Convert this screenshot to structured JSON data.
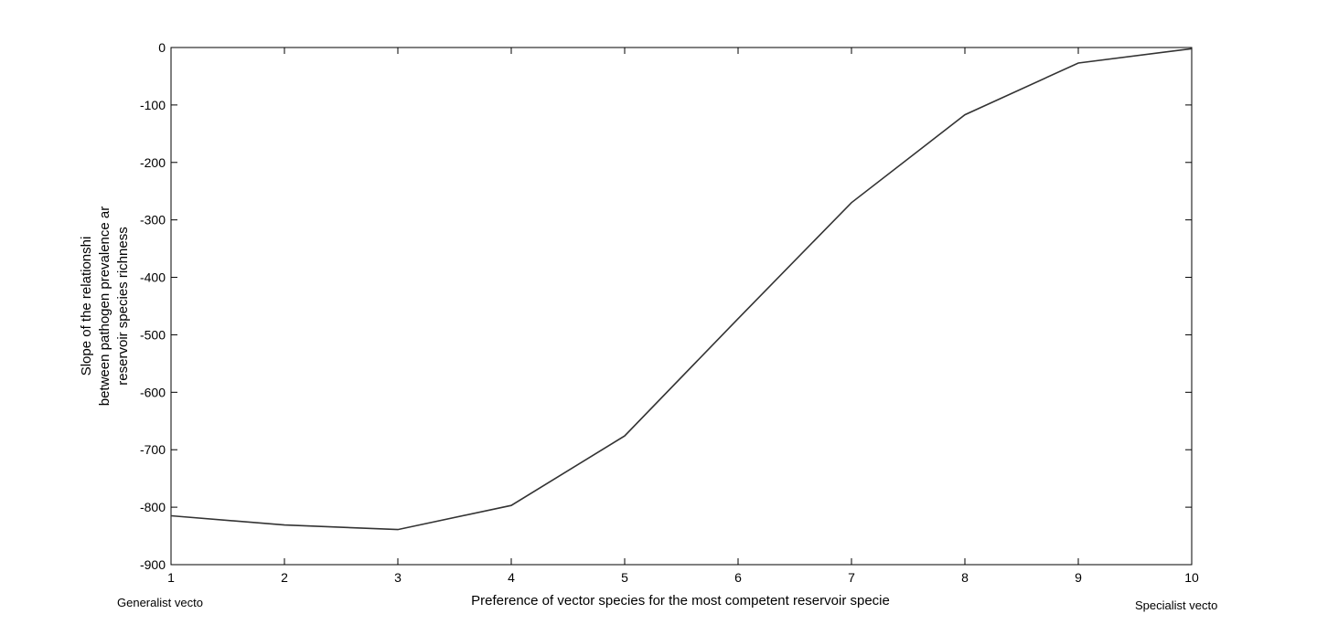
{
  "chart_data": {
    "type": "line",
    "xlabel": "Preference of vector species for the most competent reservoir specie",
    "ylabel_lines": [
      "Slope of the relationshi",
      "between pathogen prevalence ar",
      "reservoir species richness"
    ],
    "annotations": {
      "left": "Generalist vecto",
      "right": "Specialist vecto"
    },
    "xlim": [
      1,
      10
    ],
    "ylim": [
      -900,
      0
    ],
    "x_ticks": [
      1,
      2,
      3,
      4,
      5,
      6,
      7,
      8,
      9,
      10
    ],
    "y_ticks": [
      0,
      -100,
      -200,
      -300,
      -400,
      -500,
      -600,
      -700,
      -800,
      -900
    ],
    "grid": false,
    "series": [
      {
        "color": "#333333",
        "x": [
          1,
          2,
          3,
          4,
          5,
          6,
          7,
          8,
          9,
          10
        ],
        "y": [
          -815,
          -831,
          -839,
          -797,
          -676,
          -472,
          -270,
          -117,
          -27,
          -2
        ]
      }
    ]
  }
}
